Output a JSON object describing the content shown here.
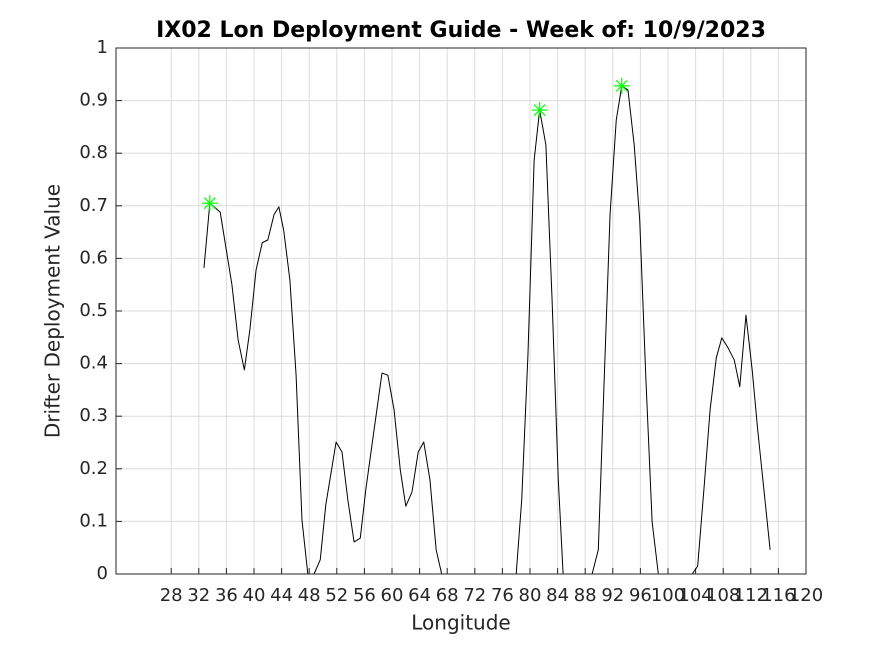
{
  "chart_data": {
    "type": "line",
    "title": "IX02 Lon Deployment Guide - Week of: 10/9/2023",
    "xlabel": "Longitude",
    "ylabel": "Drifter Deployment Value",
    "xlim": [
      20,
      120
    ],
    "xticks": [
      28,
      32,
      36,
      40,
      44,
      48,
      52,
      56,
      60,
      64,
      68,
      72,
      76,
      80,
      84,
      88,
      92,
      96,
      100,
      104,
      108,
      112,
      116,
      120
    ],
    "ylim": [
      0,
      1
    ],
    "yticks": [
      0,
      0.1,
      0.2,
      0.3,
      0.4,
      0.5,
      0.6,
      0.7,
      0.8,
      0.9,
      1
    ],
    "grid": true,
    "series": [
      {
        "color": "#000000",
        "marker": "none",
        "x": [
          32.75,
          33.6,
          35.1,
          36.8,
          37.7,
          38.6,
          39.4,
          40.3,
          41.2,
          42.0,
          42.9,
          43.6,
          44.3,
          45.2,
          46.1,
          46.95,
          47.8,
          48.7,
          49.6,
          50.4,
          51.9,
          52.75,
          53.6,
          54.5,
          55.4,
          56.2,
          57.4,
          58.55,
          59.4,
          60.3,
          61.2,
          62.0,
          62.9,
          63.8,
          64.6,
          65.5,
          66.4,
          67.2,
          78.0,
          78.8,
          79.7,
          80.6,
          81.4,
          82.3,
          83.2,
          84.1,
          84.8,
          89.0,
          89.9,
          90.7,
          91.6,
          92.5,
          93.3,
          94.2,
          95.1,
          95.9,
          96.8,
          97.7,
          98.6,
          103.5,
          104.3,
          105.2,
          106.1,
          107.0,
          107.8,
          108.7,
          109.6,
          110.4,
          111.3,
          112.2,
          113.0,
          113.9,
          114.8
        ],
        "values": [
          0.582,
          0.705,
          0.688,
          0.55,
          0.445,
          0.388,
          0.464,
          0.578,
          0.63,
          0.635,
          0.683,
          0.698,
          0.654,
          0.559,
          0.378,
          0.103,
          0,
          0,
          0.027,
          0.131,
          0.251,
          0.232,
          0.141,
          0.061,
          0.068,
          0.16,
          0.274,
          0.382,
          0.378,
          0.312,
          0.198,
          0.129,
          0.156,
          0.232,
          0.251,
          0.179,
          0.046,
          0,
          0,
          0.141,
          0.416,
          0.787,
          0.882,
          0.816,
          0.521,
          0.179,
          0,
          0,
          0.046,
          0.35,
          0.683,
          0.863,
          0.928,
          0.92,
          0.816,
          0.673,
          0.369,
          0.099,
          0,
          0,
          0.015,
          0.16,
          0.312,
          0.411,
          0.449,
          0.43,
          0.407,
          0.356,
          0.492,
          0.388,
          0.274,
          0.16,
          0.046
        ]
      },
      {
        "color": "#00ff00",
        "marker": "asterisk",
        "x": [
          33.6,
          81.4,
          93.3
        ],
        "values": [
          0.705,
          0.882,
          0.928
        ]
      }
    ]
  }
}
